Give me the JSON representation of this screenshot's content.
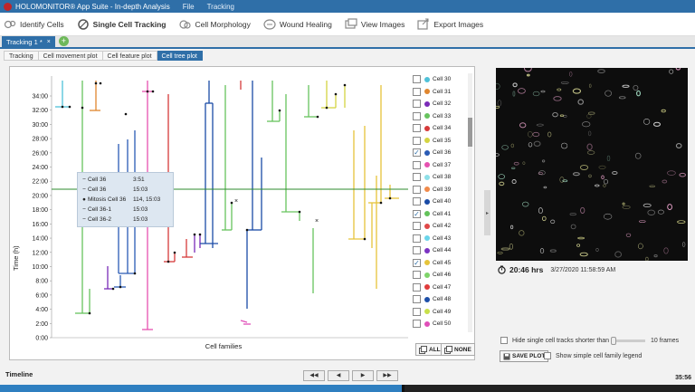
{
  "titlebar": {
    "app": "HOLOMONITOR® App Suite - In-depth Analysis",
    "menu_file": "File",
    "menu_tracking": "Tracking"
  },
  "toolbar": [
    {
      "label": "Identify Cells",
      "icon": "identify-cells-icon"
    },
    {
      "label": "Single Cell Tracking",
      "icon": "single-cell-tracking-icon",
      "active": true
    },
    {
      "label": "Cell Morphology",
      "icon": "cell-morphology-icon"
    },
    {
      "label": "Wound Healing",
      "icon": "wound-healing-icon"
    },
    {
      "label": "View Images",
      "icon": "view-images-icon"
    },
    {
      "label": "Export Images",
      "icon": "export-images-icon"
    }
  ],
  "doc_tab": {
    "label": "Tracking 1 *",
    "close": "×",
    "add": "+"
  },
  "subtabs": [
    "Tracking",
    "Cell movement plot",
    "Cell feature plot",
    "Cell tree plot"
  ],
  "active_subtab": 3,
  "plot": {
    "ylabel": "Time (h)",
    "xlabel": "Cell families",
    "yticks": [
      "0:00",
      "2:00",
      "4:00",
      "6:00",
      "8:00",
      "10:00",
      "12:00",
      "14:00",
      "16:00",
      "18:00",
      "20:00",
      "22:00",
      "24:00",
      "26:00",
      "28:00",
      "30:00",
      "32:00",
      "34:00"
    ]
  },
  "tooltip": {
    "rows": [
      {
        "sym": "−",
        "name": "Cell 36",
        "value": "3:51"
      },
      {
        "sym": "−",
        "name": "Cell 36",
        "value": "15:03"
      },
      {
        "sym": "●",
        "name": "Mitosis Cell 36",
        "value": "114, 15:03"
      },
      {
        "sym": "−",
        "name": "Cell 36-1",
        "value": "15:03"
      },
      {
        "sym": "−",
        "name": "Cell 36-2",
        "value": "15:03"
      }
    ]
  },
  "legend": [
    {
      "label": "Cell 30",
      "color": "#4fc1d8",
      "checked": false,
      "expander": false
    },
    {
      "label": "Cell 31",
      "color": "#e0862e",
      "checked": false,
      "expander": false
    },
    {
      "label": "Cell 32",
      "color": "#7a2bb8",
      "checked": false,
      "expander": false
    },
    {
      "label": "Cell 33",
      "color": "#67c35e",
      "checked": false,
      "expander": false
    },
    {
      "label": "Cell 34",
      "color": "#d63a3a",
      "checked": false,
      "expander": false
    },
    {
      "label": "Cell 35",
      "color": "#d4d441",
      "checked": false,
      "expander": false
    },
    {
      "label": "Cell 36",
      "color": "#2a5bb5",
      "checked": true,
      "expander": true
    },
    {
      "label": "Cell 37",
      "color": "#e652b0",
      "checked": false,
      "expander": false
    },
    {
      "label": "Cell 38",
      "color": "#8ee0e8",
      "checked": false,
      "expander": false
    },
    {
      "label": "Cell 39",
      "color": "#f08a4a",
      "checked": false,
      "expander": false
    },
    {
      "label": "Cell 40",
      "color": "#1a4ba6",
      "checked": false,
      "expander": false
    },
    {
      "label": "Cell 41",
      "color": "#63c25a",
      "checked": true,
      "expander": true
    },
    {
      "label": "Cell 42",
      "color": "#e04848",
      "checked": false,
      "expander": false
    },
    {
      "label": "Cell 43",
      "color": "#6ad5ea",
      "checked": false,
      "expander": false
    },
    {
      "label": "Cell 44",
      "color": "#7b33c2",
      "checked": false,
      "expander": false
    },
    {
      "label": "Cell 45",
      "color": "#e6c43a",
      "checked": true,
      "expander": true
    },
    {
      "label": "Cell 46",
      "color": "#7fd46a",
      "checked": false,
      "expander": false
    },
    {
      "label": "Cell 47",
      "color": "#e03c3c",
      "checked": false,
      "expander": true
    },
    {
      "label": "Cell 48",
      "color": "#1d4fa8",
      "checked": false,
      "expander": false
    },
    {
      "label": "Cell 49",
      "color": "#c8e04a",
      "checked": false,
      "expander": false
    },
    {
      "label": "Cell 50",
      "color": "#e04fb8",
      "checked": false,
      "expander": false
    }
  ],
  "legend_buttons": {
    "all": "ALL",
    "none": "NONE"
  },
  "image_info": {
    "time": "20:46 hrs",
    "datetime": "3/27/2020 11:58:59 AM"
  },
  "options": {
    "hide_short": "Hide single cell tracks shorter than",
    "frames": "10 frames",
    "save_plot": "SAVE PLOT",
    "show_legend": "Show simple cell family legend"
  },
  "timeline": {
    "label": "Timeline",
    "end": "35:56",
    "progress": 0.58
  },
  "colors": {
    "accent": "#2f6fa8",
    "current_time_line": "#2e8b2e"
  }
}
